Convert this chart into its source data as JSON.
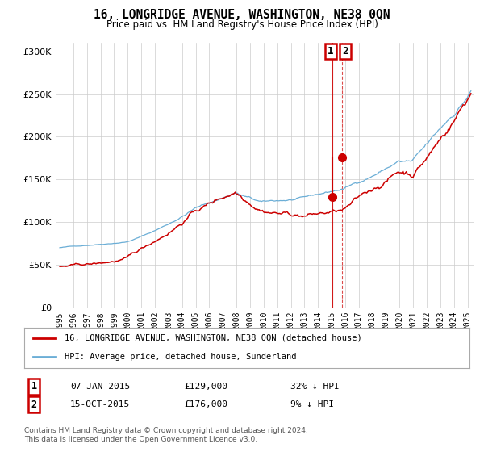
{
  "title": "16, LONGRIDGE AVENUE, WASHINGTON, NE38 0QN",
  "subtitle": "Price paid vs. HM Land Registry's House Price Index (HPI)",
  "ytick_values": [
    0,
    50000,
    100000,
    150000,
    200000,
    250000,
    300000
  ],
  "ylim": [
    0,
    310000
  ],
  "xlim_start": 1994.7,
  "xlim_end": 2025.5,
  "hpi_color": "#6baed6",
  "price_color": "#cc0000",
  "dashed_line_color": "#cc0000",
  "legend_label_red": "16, LONGRIDGE AVENUE, WASHINGTON, NE38 0QN (detached house)",
  "legend_label_blue": "HPI: Average price, detached house, Sunderland",
  "annotation1_date": "07-JAN-2015",
  "annotation1_price": "£129,000",
  "annotation1_pct": "32% ↓ HPI",
  "annotation2_date": "15-OCT-2015",
  "annotation2_price": "£176,000",
  "annotation2_pct": "9% ↓ HPI",
  "footer": "Contains HM Land Registry data © Crown copyright and database right 2024.\nThis data is licensed under the Open Government Licence v3.0.",
  "marker1_x": 2015.03,
  "marker2_x": 2015.79,
  "marker1_y_red": 129000,
  "marker2_y_red": 176000,
  "background_color": "#ffffff",
  "grid_color": "#cccccc"
}
